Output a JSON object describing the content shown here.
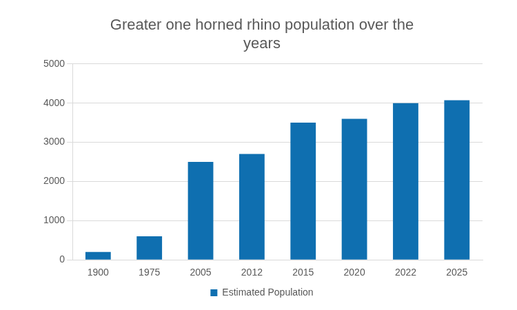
{
  "chart_data": {
    "type": "bar",
    "title": "Greater one horned rhino population over the years",
    "categories": [
      "1900",
      "1975",
      "2005",
      "2012",
      "2015",
      "2020",
      "2022",
      "2025"
    ],
    "series": [
      {
        "name": "Estimated Population",
        "color": "#0f6fb0",
        "values": [
          200,
          600,
          2500,
          2700,
          3500,
          3600,
          4000,
          4075
        ]
      }
    ],
    "ylim": [
      0,
      5000
    ],
    "yticks": [
      0,
      1000,
      2000,
      3000,
      4000,
      5000
    ],
    "grid": true,
    "legend": "bottom"
  }
}
